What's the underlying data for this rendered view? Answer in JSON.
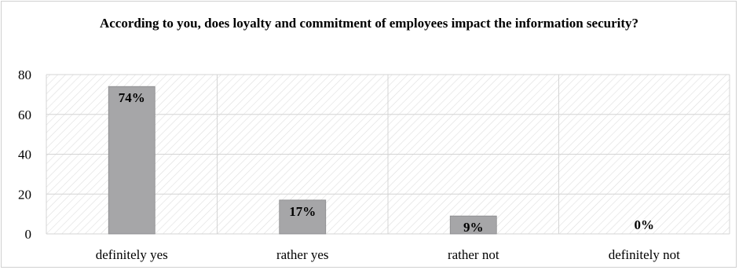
{
  "chart_data": {
    "type": "bar",
    "title": "According to you, does loyalty and commitment of employees impact the information security?",
    "categories": [
      "definitely yes",
      "rather yes",
      "rather not",
      "definitely not"
    ],
    "values": [
      74,
      17,
      9,
      0
    ],
    "data_labels": [
      "74%",
      "17%",
      "9%",
      "0%"
    ],
    "ylim": [
      0,
      80
    ],
    "yticks": [
      0,
      20,
      40,
      60,
      80
    ],
    "grid": true,
    "legend": "none",
    "colors": {
      "bar": "#a6a6a8",
      "bar_stroke": "#8a8a8c",
      "grid": "#d4d4d4",
      "hatch": "#dedede"
    }
  }
}
